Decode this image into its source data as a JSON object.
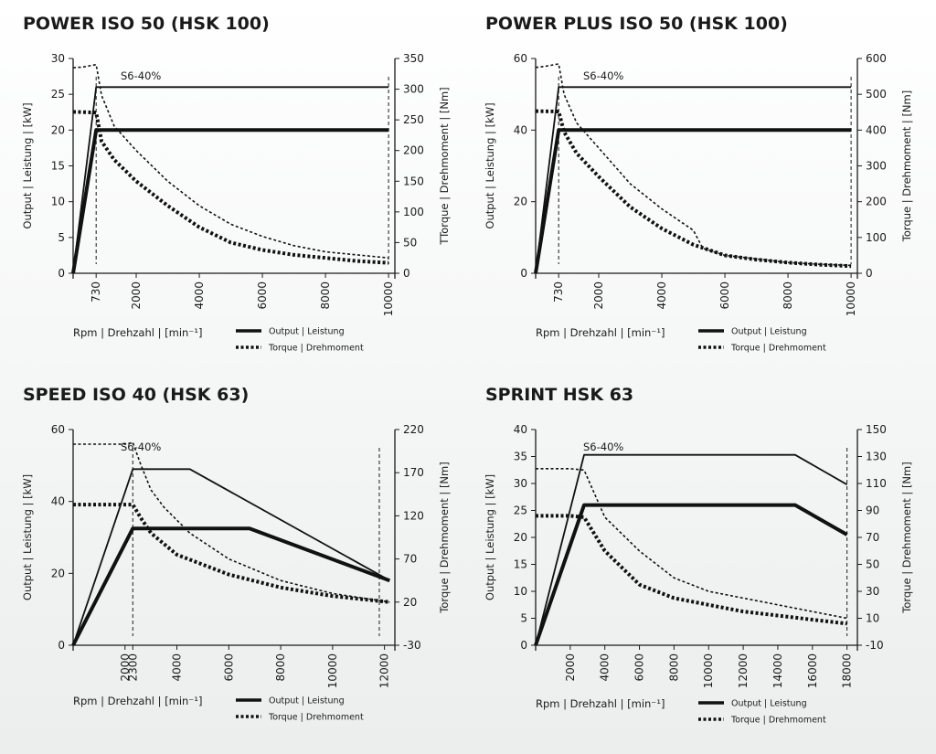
{
  "chart_data": [
    {
      "type": "line",
      "title": "POWER ISO 50 (HSK 100)",
      "xlabel": "Rpm | Drehzahl  |  [min⁻¹]",
      "ylabel": "Output | Leistung  |  [kW]",
      "y2label": "TTorque | Drehmoment  |  [Nm]",
      "xlim": [
        0,
        10200
      ],
      "xticks": [
        "730",
        "2000",
        "4000",
        "6000",
        "8000",
        "10000"
      ],
      "xtick_values": [
        730,
        2000,
        4000,
        6000,
        8000,
        10000
      ],
      "ylim": [
        0,
        30
      ],
      "yticks": [
        0,
        5,
        10,
        15,
        20,
        25,
        30
      ],
      "y2lim": [
        0,
        350
      ],
      "y2ticks": [
        0,
        50,
        100,
        150,
        200,
        250,
        300,
        350
      ],
      "annotation": "S6-40%",
      "vlines": [
        730,
        10000
      ],
      "legend": [
        "Output | Leistung",
        "Torque | Drehmoment"
      ],
      "series": [
        {
          "axis": "left",
          "style": "thin-solid",
          "x": [
            0,
            730,
            10000
          ],
          "y": [
            0,
            26,
            26
          ]
        },
        {
          "axis": "left",
          "style": "thick-solid",
          "x": [
            0,
            730,
            10000
          ],
          "y": [
            0,
            20,
            20
          ]
        },
        {
          "axis": "right",
          "style": "thin-dash",
          "x": [
            0,
            300,
            730,
            900,
            1300,
            2000,
            3000,
            4000,
            5000,
            6000,
            7000,
            8000,
            9000,
            10000
          ],
          "y": [
            335,
            336,
            340,
            290,
            240,
            200,
            150,
            110,
            80,
            60,
            45,
            35,
            30,
            25
          ]
        },
        {
          "axis": "right",
          "style": "thick-dash",
          "x": [
            0,
            730,
            900,
            1300,
            2000,
            3000,
            4000,
            5000,
            6000,
            7000,
            8000,
            9000,
            10000
          ],
          "y": [
            263,
            262,
            215,
            185,
            150,
            110,
            75,
            50,
            38,
            30,
            25,
            20,
            17
          ]
        }
      ]
    },
    {
      "type": "line",
      "title": "POWER PLUS ISO 50 (HSK 100)",
      "xlabel": "Rpm | Drehzahl  |  [min⁻¹]",
      "ylabel": "Output | Leistung  |  [kW]",
      "y2label": "Torque | Drehmoment  |  [Nm]",
      "xlim": [
        0,
        10200
      ],
      "xticks": [
        "730",
        "2000",
        "4000",
        "6000",
        "8000",
        "10000"
      ],
      "xtick_values": [
        730,
        2000,
        4000,
        6000,
        8000,
        10000
      ],
      "ylim": [
        0,
        60
      ],
      "yticks": [
        0,
        20,
        40,
        60
      ],
      "y2lim": [
        0,
        600
      ],
      "y2ticks": [
        0,
        100,
        200,
        300,
        400,
        500,
        600
      ],
      "annotation": "S6-40%",
      "vlines": [
        730,
        10000
      ],
      "legend": [
        "Output | Leistung",
        "Torque | Drehmoment"
      ],
      "series": [
        {
          "axis": "left",
          "style": "thin-solid",
          "x": [
            0,
            730,
            10000
          ],
          "y": [
            0,
            52,
            52
          ]
        },
        {
          "axis": "left",
          "style": "thick-solid",
          "x": [
            0,
            730,
            10000
          ],
          "y": [
            0,
            40,
            40
          ]
        },
        {
          "axis": "right",
          "style": "thin-dash",
          "x": [
            0,
            300,
            730,
            900,
            1300,
            2000,
            3000,
            4000,
            5000,
            5300,
            6000,
            7000,
            8000,
            9000,
            10000
          ],
          "y": [
            575,
            578,
            585,
            500,
            420,
            350,
            250,
            180,
            120,
            70,
            50,
            40,
            30,
            25,
            22
          ]
        },
        {
          "axis": "right",
          "style": "thick-dash",
          "x": [
            0,
            730,
            900,
            1300,
            2000,
            3000,
            4000,
            5000,
            6000,
            7000,
            8000,
            9000,
            10000
          ],
          "y": [
            453,
            452,
            395,
            335,
            270,
            185,
            125,
            80,
            50,
            38,
            30,
            24,
            20
          ]
        }
      ]
    },
    {
      "type": "line",
      "title": "SPEED ISO 40 (HSK 63)",
      "xlabel": "Rpm | Drehzahl  |  [min⁻¹]",
      "ylabel": "Output | Leistung  |  [kW]",
      "y2label": "Torque | Drehmoment  |  [Nm]",
      "xlim": [
        0,
        12400
      ],
      "xticks": [
        "2000",
        "2300",
        "4000",
        "6000",
        "8000",
        "10000",
        "12000"
      ],
      "xtick_values": [
        2000,
        2300,
        4000,
        6000,
        8000,
        10000,
        12000
      ],
      "ylim": [
        0,
        60
      ],
      "yticks": [
        0,
        20,
        40,
        60
      ],
      "y2lim": [
        -30,
        220
      ],
      "y2ticks": [
        -30,
        20,
        70,
        120,
        170,
        220
      ],
      "annotation": "S6-40%",
      "vlines": [
        2300,
        11800
      ],
      "legend": [
        "Output | Leistung",
        "Torque | Drehmoment"
      ],
      "series": [
        {
          "axis": "left",
          "style": "thin-solid",
          "x": [
            0,
            2300,
            4500,
            12200
          ],
          "y": [
            0,
            49,
            49,
            18
          ]
        },
        {
          "axis": "left",
          "style": "thick-solid",
          "x": [
            0,
            2300,
            6800,
            12200
          ],
          "y": [
            0,
            32.5,
            32.5,
            18
          ]
        },
        {
          "axis": "right",
          "style": "thin-dash",
          "x": [
            0,
            2000,
            2300,
            2600,
            3000,
            3500,
            4500,
            6000,
            8000,
            10000,
            12200
          ],
          "y": [
            203,
            203,
            205,
            180,
            150,
            130,
            100,
            70,
            45,
            30,
            20
          ]
        },
        {
          "axis": "right",
          "style": "thick-dash",
          "x": [
            0,
            2300,
            2600,
            3000,
            4000,
            6000,
            8000,
            10000,
            12200
          ],
          "y": [
            133,
            133,
            118,
            100,
            75,
            52,
            37,
            27,
            20
          ]
        }
      ]
    },
    {
      "type": "line",
      "title": "SPRINT HSK 63",
      "xlabel": "Rpm | Drehzahl  |  [min⁻¹]",
      "ylabel": "Output | Leistung  |  [kW]",
      "y2label": "Torque | Drehmoment  |  [Nm]",
      "xlim": [
        0,
        18600
      ],
      "xticks": [
        "2000",
        "4000",
        "6000",
        "8000",
        "10000",
        "12000",
        "14000",
        "16000",
        "18000"
      ],
      "xtick_values": [
        2000,
        4000,
        6000,
        8000,
        10000,
        12000,
        14000,
        16000,
        18000
      ],
      "ylim": [
        0,
        40
      ],
      "yticks": [
        0,
        5,
        10,
        15,
        20,
        25,
        30,
        35,
        40
      ],
      "y2lim": [
        -10,
        150
      ],
      "y2ticks": [
        -10,
        10,
        30,
        50,
        70,
        90,
        110,
        130,
        150
      ],
      "annotation": "S6-40%",
      "vlines": [
        18000
      ],
      "legend": [
        "Output | Leistung",
        "Torque | Drehmoment"
      ],
      "series": [
        {
          "axis": "left",
          "style": "thin-solid",
          "x": [
            0,
            2800,
            15000,
            18000
          ],
          "y": [
            0,
            35.3,
            35.3,
            29.8
          ]
        },
        {
          "axis": "left",
          "style": "thick-solid",
          "x": [
            0,
            2800,
            15000,
            18000
          ],
          "y": [
            0,
            26,
            26,
            20.5
          ]
        },
        {
          "axis": "right",
          "style": "thin-dash",
          "x": [
            0,
            2000,
            2800,
            4000,
            6000,
            8000,
            10000,
            12000,
            14000,
            16000,
            18000
          ],
          "y": [
            121,
            121,
            120,
            85,
            60,
            40,
            30,
            25,
            20,
            15,
            10
          ]
        },
        {
          "axis": "right",
          "style": "thick-dash",
          "x": [
            0,
            2000,
            2800,
            4000,
            6000,
            8000,
            10000,
            12000,
            14000,
            16000,
            18000
          ],
          "y": [
            86,
            86,
            85,
            60,
            35,
            25,
            20,
            15,
            12,
            9,
            6
          ]
        }
      ]
    }
  ]
}
